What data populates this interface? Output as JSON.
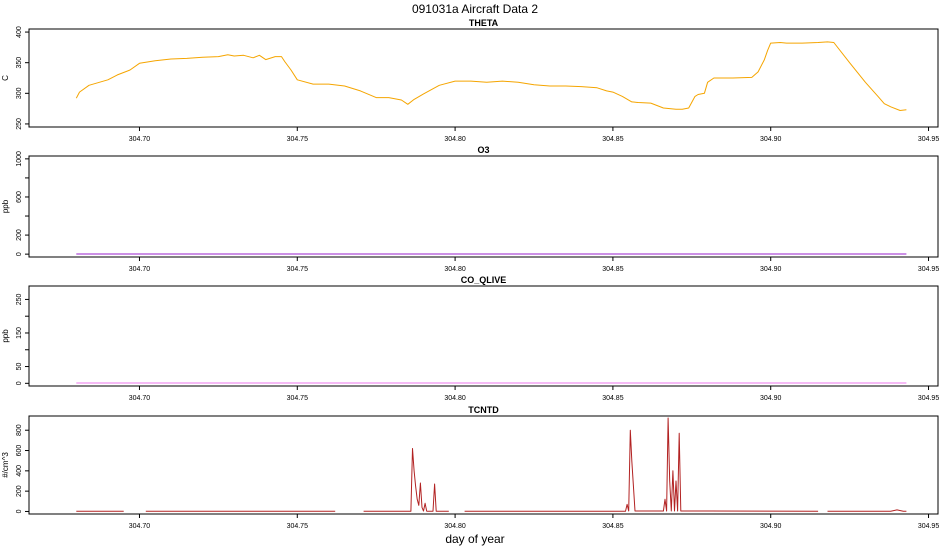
{
  "figure": {
    "title": "091031a   Aircraft Data 2",
    "xlabel": "day of year"
  },
  "chart_data": [
    {
      "type": "line",
      "title": "THETA",
      "ylabel": "C",
      "color": "#f5a500",
      "xlim": [
        304.665,
        304.953
      ],
      "ylim": [
        245,
        405
      ],
      "xticks": [
        304.7,
        304.75,
        304.8,
        304.85,
        304.9,
        304.95
      ],
      "xticklabels": [
        "304.70",
        "304.75",
        "304.80",
        "304.85",
        "304.90",
        "304.95"
      ],
      "yticks": [
        250,
        300,
        350,
        400
      ],
      "yticklabels": [
        "250",
        "300",
        "350",
        "400"
      ],
      "x": [
        304.68,
        304.681,
        304.684,
        304.69,
        304.693,
        304.697,
        304.7,
        304.705,
        304.71,
        304.715,
        304.72,
        304.725,
        304.728,
        304.73,
        304.733,
        304.736,
        304.738,
        304.74,
        304.743,
        304.745,
        304.746,
        304.748,
        304.75,
        304.755,
        304.76,
        304.765,
        304.77,
        304.775,
        304.779,
        304.783,
        304.785,
        304.787,
        304.79,
        304.795,
        304.8,
        304.805,
        304.81,
        304.815,
        304.82,
        304.825,
        304.83,
        304.835,
        304.84,
        304.845,
        304.848,
        304.85,
        304.853,
        304.856,
        304.858,
        304.862,
        304.866,
        304.87,
        304.872,
        304.874,
        304.876,
        304.877,
        304.879,
        304.88,
        304.882,
        304.885,
        304.888,
        304.894,
        304.896,
        304.898,
        304.899,
        304.9,
        304.903,
        304.905,
        304.91,
        304.915,
        304.918,
        304.92,
        304.925,
        304.93,
        304.934,
        304.936,
        304.938,
        304.941,
        304.943
      ],
      "y": [
        292,
        302,
        313,
        322,
        330,
        338,
        349,
        353,
        356,
        357,
        359,
        360,
        363,
        361,
        362,
        358,
        362,
        355,
        360,
        360,
        352,
        338,
        322,
        315,
        315,
        312,
        304,
        293,
        293,
        289,
        282,
        290,
        299,
        313,
        320,
        320,
        318,
        320,
        318,
        314,
        312,
        312,
        311,
        309,
        304,
        302,
        295,
        286,
        285,
        284,
        276,
        274,
        274,
        276,
        295,
        298,
        300,
        318,
        325,
        325,
        325,
        326,
        335,
        355,
        370,
        382,
        383,
        382,
        382,
        383,
        384,
        383,
        350,
        318,
        295,
        283,
        278,
        272,
        273
      ]
    },
    {
      "type": "line",
      "title": "O3",
      "ylabel": "ppb",
      "color": "#9922cc",
      "xlim": [
        304.665,
        304.953
      ],
      "ylim": [
        -30,
        1030
      ],
      "xticks": [
        304.7,
        304.75,
        304.8,
        304.85,
        304.9,
        304.95
      ],
      "xticklabels": [
        "304.70",
        "304.75",
        "304.80",
        "304.85",
        "304.90",
        "304.95"
      ],
      "yticks": [
        0,
        200,
        400,
        600,
        800,
        1000
      ],
      "yticklabels": [
        "0",
        "200",
        "",
        "600",
        "",
        "1000"
      ],
      "x": [
        304.68,
        304.943
      ],
      "y": [
        2,
        2
      ]
    },
    {
      "type": "line",
      "title": "CO_QLIVE",
      "ylabel": "ppb",
      "color": "#ee77ee",
      "xlim": [
        304.665,
        304.953
      ],
      "ylim": [
        -8,
        290
      ],
      "xticks": [
        304.7,
        304.75,
        304.8,
        304.85,
        304.9,
        304.95
      ],
      "xticklabels": [
        "304.70",
        "304.75",
        "304.80",
        "304.85",
        "304.90",
        "304.95"
      ],
      "yticks": [
        0,
        50,
        100,
        150,
        200,
        250
      ],
      "yticklabels": [
        "0",
        "50",
        "",
        "150",
        "",
        "250"
      ],
      "x": [
        304.68,
        304.943
      ],
      "y": [
        1,
        1
      ]
    },
    {
      "type": "line",
      "title": "TCNTD",
      "ylabel": "#/cm^3",
      "color": "#b22222",
      "xlim": [
        304.665,
        304.953
      ],
      "ylim": [
        -25,
        940
      ],
      "xticks": [
        304.7,
        304.75,
        304.8,
        304.85,
        304.9,
        304.95
      ],
      "xticklabels": [
        "304.70",
        "304.75",
        "304.80",
        "304.85",
        "304.90",
        "304.95"
      ],
      "yticks": [
        0,
        200,
        400,
        600,
        800
      ],
      "yticklabels": [
        "0",
        "200",
        "400",
        "600",
        "800"
      ],
      "series": [
        {
          "x": [
            304.68,
            304.695
          ],
          "y": [
            3,
            3
          ]
        },
        {
          "x": [
            304.702,
            304.762
          ],
          "y": [
            3,
            3
          ]
        },
        {
          "x": [
            304.771,
            304.786,
            304.7865,
            304.787,
            304.7875,
            304.788,
            304.7885,
            304.789,
            304.7895,
            304.79,
            304.7905,
            304.791,
            304.792,
            304.793,
            304.7935,
            304.794,
            304.795,
            304.798
          ],
          "y": [
            3,
            3,
            620,
            400,
            250,
            120,
            60,
            280,
            40,
            5,
            80,
            3,
            3,
            3,
            270,
            3,
            3,
            3
          ]
        },
        {
          "x": [
            304.803,
            304.854,
            304.8545,
            304.855,
            304.8555,
            304.856,
            304.857,
            304.866,
            304.8665,
            304.867,
            304.8675,
            304.868,
            304.8685,
            304.869,
            304.8695,
            304.87,
            304.8705,
            304.871,
            304.8715,
            304.873,
            304.88,
            304.915
          ],
          "y": [
            3,
            3,
            70,
            5,
            800,
            500,
            5,
            5,
            120,
            5,
            920,
            300,
            5,
            400,
            5,
            300,
            5,
            770,
            5,
            5,
            5,
            3
          ]
        },
        {
          "x": [
            304.918,
            304.938,
            304.94,
            304.942,
            304.943
          ],
          "y": [
            3,
            3,
            15,
            3,
            3
          ]
        }
      ]
    }
  ]
}
